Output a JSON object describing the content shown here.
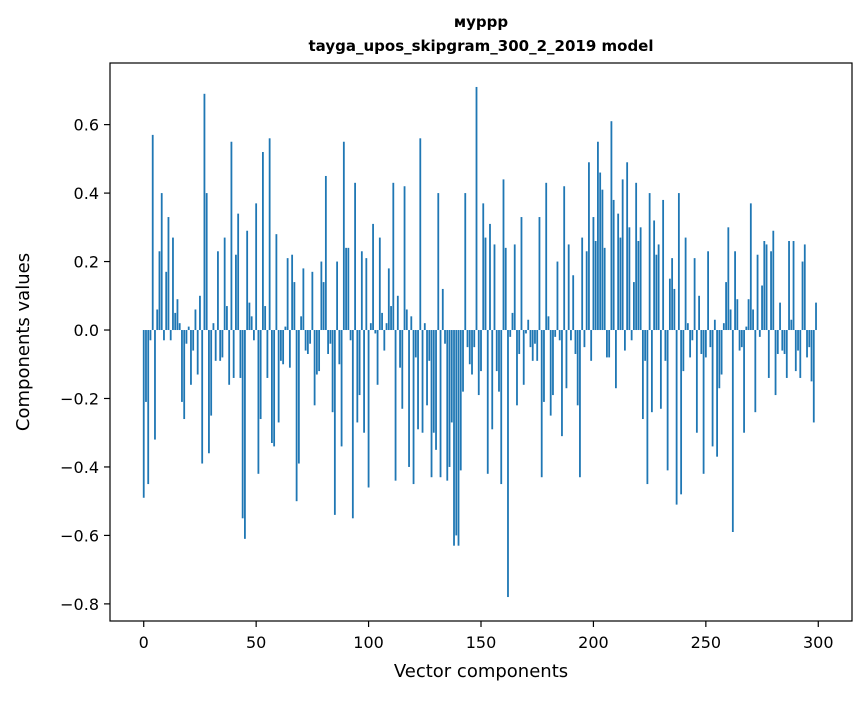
{
  "chart_data": {
    "type": "bar",
    "title": "муррр",
    "subtitle": "tayga_upos_skipgram_300_2_2019 model",
    "xlabel": "Vector components",
    "ylabel": "Components values",
    "xlim": [
      -15,
      315
    ],
    "ylim": [
      -0.85,
      0.78
    ],
    "xticks": [
      0,
      50,
      100,
      150,
      200,
      250,
      300
    ],
    "yticks": [
      -0.8,
      -0.6,
      -0.4,
      -0.2,
      0.0,
      0.2,
      0.4,
      0.6
    ],
    "ytick_labels": [
      "−0.8",
      "−0.6",
      "−0.4",
      "−0.2",
      "0.0",
      "0.2",
      "0.4",
      "0.6"
    ],
    "grid": false,
    "bar_color": "#1f77b4",
    "values": [
      -0.49,
      -0.21,
      -0.45,
      -0.03,
      0.57,
      -0.32,
      0.06,
      0.23,
      0.4,
      -0.03,
      0.17,
      0.33,
      -0.03,
      0.27,
      0.05,
      0.09,
      0.02,
      -0.21,
      -0.26,
      -0.04,
      0.01,
      -0.16,
      -0.06,
      0.06,
      -0.13,
      0.1,
      -0.39,
      0.69,
      0.4,
      -0.36,
      -0.25,
      0.02,
      -0.09,
      0.23,
      -0.09,
      -0.08,
      0.27,
      0.07,
      -0.16,
      0.55,
      -0.14,
      0.22,
      0.34,
      -0.14,
      -0.55,
      -0.61,
      0.29,
      0.08,
      0.04,
      -0.03,
      0.37,
      -0.42,
      -0.26,
      0.52,
      0.07,
      -0.14,
      0.56,
      -0.33,
      -0.34,
      0.28,
      -0.27,
      -0.09,
      -0.1,
      0.01,
      0.21,
      -0.11,
      0.22,
      0.14,
      -0.5,
      -0.39,
      0.04,
      0.18,
      -0.06,
      -0.07,
      -0.04,
      0.17,
      -0.22,
      -0.13,
      -0.12,
      0.2,
      0.14,
      0.45,
      -0.07,
      -0.04,
      -0.24,
      -0.54,
      0.2,
      -0.1,
      -0.34,
      0.55,
      0.24,
      0.24,
      -0.03,
      -0.55,
      0.43,
      -0.27,
      -0.19,
      0.23,
      -0.3,
      0.21,
      -0.46,
      0.02,
      0.31,
      -0.01,
      -0.16,
      0.27,
      0.05,
      -0.06,
      0.02,
      0.18,
      0.07,
      0.43,
      -0.44,
      0.1,
      -0.11,
      -0.23,
      0.42,
      0.06,
      -0.4,
      0.04,
      -0.45,
      -0.08,
      -0.29,
      0.56,
      -0.3,
      0.02,
      -0.22,
      -0.09,
      -0.43,
      -0.3,
      -0.35,
      0.4,
      -0.43,
      0.12,
      -0.04,
      -0.44,
      -0.4,
      -0.27,
      -0.63,
      -0.6,
      -0.63,
      -0.41,
      -0.18,
      0.4,
      -0.05,
      -0.1,
      -0.13,
      -0.05,
      0.71,
      -0.19,
      -0.12,
      0.37,
      0.27,
      -0.42,
      0.31,
      -0.29,
      0.25,
      -0.12,
      -0.18,
      -0.45,
      0.44,
      0.24,
      -0.78,
      -0.02,
      0.05,
      0.25,
      -0.22,
      -0.07,
      0.33,
      -0.16,
      -0.01,
      0.03,
      -0.05,
      -0.09,
      -0.04,
      -0.09,
      0.33,
      -0.43,
      -0.21,
      0.43,
      0.04,
      -0.25,
      -0.19,
      -0.02,
      0.2,
      -0.03,
      -0.31,
      0.42,
      -0.17,
      0.25,
      -0.03,
      0.16,
      -0.07,
      -0.22,
      -0.43,
      0.27,
      -0.05,
      0.23,
      0.49,
      -0.09,
      0.33,
      0.26,
      0.55,
      0.46,
      0.41,
      0.24,
      -0.08,
      -0.08,
      0.61,
      0.38,
      -0.17,
      0.34,
      0.27,
      0.44,
      -0.06,
      0.49,
      0.3,
      -0.03,
      0.14,
      0.43,
      0.26,
      0.3,
      -0.26,
      -0.09,
      -0.45,
      0.4,
      -0.24,
      0.32,
      0.22,
      0.25,
      -0.23,
      0.38,
      -0.09,
      -0.41,
      0.15,
      0.21,
      0.12,
      -0.51,
      0.4,
      -0.48,
      -0.12,
      0.27,
      0.02,
      -0.08,
      -0.03,
      0.21,
      -0.3,
      0.1,
      -0.07,
      -0.42,
      -0.08,
      0.23,
      -0.05,
      -0.34,
      0.03,
      -0.37,
      -0.17,
      -0.13,
      0.02,
      0.14,
      0.3,
      0.06,
      -0.59,
      0.23,
      0.09,
      -0.06,
      -0.05,
      -0.3,
      0.01,
      0.09,
      0.37,
      0.06,
      -0.24,
      0.22,
      -0.02,
      0.13,
      0.26,
      0.25,
      -0.14,
      0.23,
      0.29,
      -0.19,
      -0.07,
      0.08,
      -0.06,
      -0.07,
      -0.14,
      0.26,
      0.03,
      0.26,
      -0.12,
      -0.06,
      -0.14,
      0.2,
      0.25,
      -0.08,
      -0.05,
      -0.15,
      -0.27,
      0.08
    ]
  }
}
